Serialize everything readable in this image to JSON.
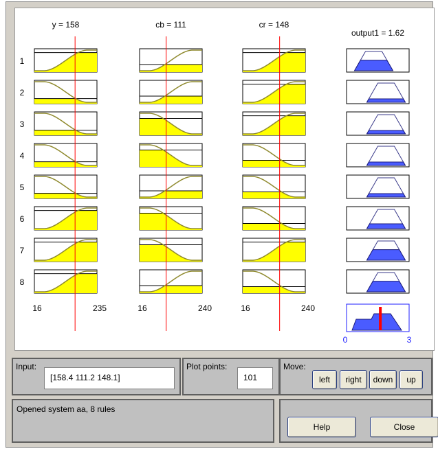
{
  "ruleviewer": {
    "inputs": [
      {
        "title": "y = 158",
        "range": [
          "16",
          "235"
        ],
        "marker": 158.4,
        "min": 16,
        "max": 235
      },
      {
        "title": "cb = 111",
        "range": [
          "16",
          "240"
        ],
        "marker": 111.2,
        "min": 16,
        "max": 240
      },
      {
        "title": "cr = 148",
        "range": [
          "16",
          "240"
        ],
        "marker": 148.1,
        "min": 16,
        "max": 240
      }
    ],
    "output": {
      "title": "output1 = 1.62",
      "range": [
        "0",
        "3"
      ],
      "marker": 1.62,
      "min": 0,
      "max": 3
    },
    "rule_numbers": [
      "1",
      "2",
      "3",
      "4",
      "5",
      "6",
      "7",
      "8"
    ],
    "rules": [
      {
        "in": [
          [
            "rise",
            0.88
          ],
          [
            "rise",
            0.3
          ],
          [
            "rise",
            0.88
          ]
        ],
        "out": [
          "left",
          0.55
        ]
      },
      {
        "in": [
          [
            "fall",
            0.18
          ],
          [
            "rise",
            0.3
          ],
          [
            "rise",
            0.88
          ]
        ],
        "out": [
          "right",
          0.18
        ]
      },
      {
        "in": [
          [
            "fall",
            0.18
          ],
          [
            "fall",
            0.75
          ],
          [
            "rise",
            0.88
          ]
        ],
        "out": [
          "right",
          0.18
        ]
      },
      {
        "in": [
          [
            "fall",
            0.18
          ],
          [
            "fall",
            0.75
          ],
          [
            "fall",
            0.25
          ]
        ],
        "out": [
          "right",
          0.18
        ]
      },
      {
        "in": [
          [
            "fall",
            0.18
          ],
          [
            "rise",
            0.3
          ],
          [
            "fall",
            0.25
          ]
        ],
        "out": [
          "right",
          0.18
        ]
      },
      {
        "in": [
          [
            "rise",
            0.88
          ],
          [
            "fall",
            0.75
          ],
          [
            "fall",
            0.25
          ]
        ],
        "out": [
          "right",
          0.25
        ]
      },
      {
        "in": [
          [
            "rise",
            0.88
          ],
          [
            "fall",
            0.75
          ],
          [
            "rise",
            0.88
          ]
        ],
        "out": [
          "right",
          0.55
        ]
      },
      {
        "in": [
          [
            "rise",
            0.88
          ],
          [
            "rise",
            0.3
          ],
          [
            "fall",
            0.25
          ]
        ],
        "out": [
          "right",
          0.55
        ]
      }
    ],
    "colors": {
      "membership": "#ffff00",
      "curve": "#8f8a2e",
      "curve_dark": "#1a1a1a",
      "output_fill": "#4a5cff",
      "marker": "#ff0000",
      "output_marker": "#ff0000",
      "range_output": "#1c1cff"
    }
  },
  "input_panel": {
    "label": "Input:",
    "value": "[158.4 111.2 148.1]"
  },
  "plot_panel": {
    "label": "Plot points:",
    "value": "101"
  },
  "move_panel": {
    "label": "Move:",
    "buttons": [
      "left",
      "right",
      "down",
      "up"
    ]
  },
  "status": {
    "text": "Opened system aa, 8 rules"
  },
  "actions": {
    "help": "Help",
    "close": "Close"
  }
}
